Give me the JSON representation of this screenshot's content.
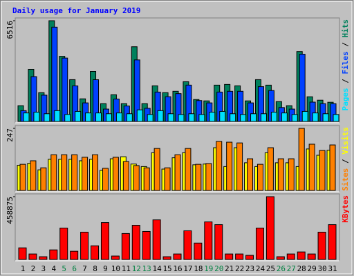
{
  "chart_data": {
    "type": "bar",
    "title": "Daily usage for January 2019",
    "separator": "/",
    "categories": [
      "1",
      "2",
      "3",
      "4",
      "5",
      "6",
      "7",
      "8",
      "9",
      "10",
      "11",
      "12",
      "13",
      "14",
      "15",
      "16",
      "17",
      "18",
      "19",
      "20",
      "21",
      "22",
      "23",
      "24",
      "25",
      "26",
      "27",
      "28",
      "29",
      "30",
      "31"
    ],
    "category_colors": [
      "#000000",
      "#000000",
      "#000000",
      "#000000",
      "#008040",
      "#008040",
      "#000000",
      "#000000",
      "#000000",
      "#000000",
      "#000000",
      "#008040",
      "#008040",
      "#000000",
      "#000000",
      "#000000",
      "#000000",
      "#000000",
      "#008040",
      "#008040",
      "#000000",
      "#000000",
      "#000000",
      "#000000",
      "#000000",
      "#008040",
      "#008040",
      "#000000",
      "#000000",
      "#000000",
      "#000000"
    ],
    "panels": [
      {
        "ylim": [
          0,
          6516
        ],
        "yticks": [
          6516
        ],
        "series": [
          {
            "name": "Hits",
            "color": "#00805c",
            "values": [
              1019,
              3369,
              1862,
              6516,
              4211,
              2704,
              1463,
              3236,
              1152,
              1729,
              1152,
              4832,
              1152,
              2305,
              1862,
              1950,
              2571,
              1418,
              1330,
              2349,
              2394,
              2305,
              1330,
              2704,
              2349,
              1285,
              1019,
              4521,
              1596,
              1374,
              1241
            ]
          },
          {
            "name": "Files",
            "color": "#0040ff",
            "values": [
              700,
              2900,
              1700,
              6100,
              4100,
              2300,
              1200,
              2700,
              800,
              1450,
              1000,
              3980,
              850,
              1900,
              1600,
              1800,
              2350,
              1350,
              1200,
              1900,
              1950,
              1950,
              1200,
              2250,
              2000,
              900,
              800,
              4350,
              1250,
              1150,
              1150
            ]
          },
          {
            "name": "Pages",
            "color": "#00e0ff",
            "values": [
              550,
              600,
              500,
              700,
              450,
              650,
              550,
              550,
              500,
              550,
              500,
              750,
              450,
              700,
              500,
              450,
              500,
              450,
              600,
              650,
              500,
              450,
              500,
              500,
              600,
              550,
              450,
              650,
              550,
              500,
              450
            ]
          }
        ]
      },
      {
        "ylim": [
          0,
          247
        ],
        "yticks": [
          247
        ],
        "series": [
          {
            "name": "Visits",
            "color": "#ffff00",
            "values": [
              100,
              108,
              82,
              124,
              124,
              124,
              118,
              124,
              80,
              126,
              134,
              105,
              95,
              150,
              85,
              130,
              150,
              102,
              105,
              170,
              95,
              170,
              110,
              95,
              150,
              110,
              110,
              95,
              165,
              140,
              160
            ]
          },
          {
            "name": "Sites",
            "color": "#ff8000",
            "values": [
              104,
              118,
              90,
              142,
              142,
              142,
              132,
              142,
              88,
              132,
              115,
              99,
              90,
              167,
              90,
              142,
              167,
              104,
              107,
              195,
              192,
              189,
              126,
              104,
              170,
              126,
              126,
              247,
              184,
              159,
              181
            ]
          }
        ]
      },
      {
        "ylim": [
          0,
          458875
        ],
        "yticks": [
          458875
        ],
        "series": [
          {
            "name": "KBytes",
            "color": "#ff0000",
            "values": [
              84796,
              39904,
              19952,
              69832,
              229448,
              59856,
              199520,
              99760,
              269352,
              24940,
              189544,
              249400,
              204508,
              289304,
              19952,
              39904,
              209496,
              119712,
              274340,
              254388,
              39904,
              39904,
              29928,
              229448,
              458875,
              19952,
              39904,
              54868,
              39904,
              199520,
              254388
            ]
          }
        ]
      }
    ]
  }
}
